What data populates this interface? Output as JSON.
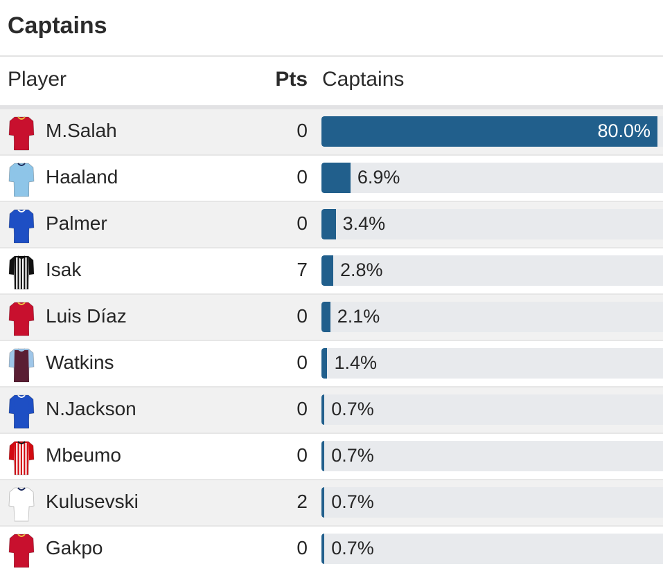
{
  "title": "Captains",
  "columns": {
    "player": "Player",
    "pts": "Pts",
    "captains": "Captains"
  },
  "colors": {
    "bar": "#215f8c",
    "track": "#e8eaed"
  },
  "rows": [
    {
      "name": "M.Salah",
      "pts": "0",
      "pct": 80.0,
      "label": "80.0%",
      "kit": "liverpool"
    },
    {
      "name": "Haaland",
      "pts": "0",
      "pct": 6.9,
      "label": "6.9%",
      "kit": "man-city"
    },
    {
      "name": "Palmer",
      "pts": "0",
      "pct": 3.4,
      "label": "3.4%",
      "kit": "chelsea"
    },
    {
      "name": "Isak",
      "pts": "7",
      "pct": 2.8,
      "label": "2.8%",
      "kit": "newcastle"
    },
    {
      "name": "Luis Díaz",
      "pts": "0",
      "pct": 2.1,
      "label": "2.1%",
      "kit": "liverpool"
    },
    {
      "name": "Watkins",
      "pts": "0",
      "pct": 1.4,
      "label": "1.4%",
      "kit": "aston-villa"
    },
    {
      "name": "N.Jackson",
      "pts": "0",
      "pct": 0.7,
      "label": "0.7%",
      "kit": "chelsea"
    },
    {
      "name": "Mbeumo",
      "pts": "0",
      "pct": 0.7,
      "label": "0.7%",
      "kit": "brentford"
    },
    {
      "name": "Kulusevski",
      "pts": "2",
      "pct": 0.7,
      "label": "0.7%",
      "kit": "tottenham"
    },
    {
      "name": "Gakpo",
      "pts": "0",
      "pct": 0.7,
      "label": "0.7%",
      "kit": "liverpool"
    }
  ]
}
